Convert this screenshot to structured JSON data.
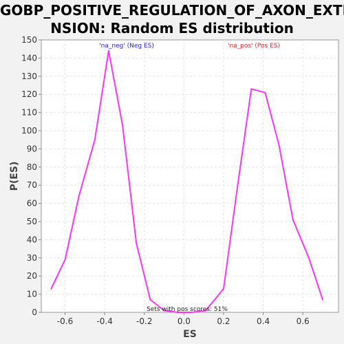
{
  "chart_data": {
    "type": "line",
    "title_line1": "GOBP_POSITIVE_REGULATION_OF_AXON_EXTE",
    "title_line2": "NSION: Random ES distribution",
    "xlabel": "ES",
    "ylabel": "P(ES)",
    "xlim": [
      -0.72,
      0.78
    ],
    "ylim": [
      0,
      150
    ],
    "xticks": [
      "-0.6",
      "-0.4",
      "-0.2",
      "0.0",
      "0.2",
      "0.4",
      "0.6"
    ],
    "xtick_values": [
      -0.6,
      -0.4,
      -0.2,
      0.0,
      0.2,
      0.4,
      0.6
    ],
    "yticks": [
      0,
      10,
      20,
      30,
      40,
      50,
      60,
      70,
      80,
      90,
      100,
      110,
      120,
      130,
      140,
      150
    ],
    "grid": true,
    "line_color": "#ff33ff",
    "series": [
      {
        "x": [
          -0.67,
          -0.6,
          -0.53,
          -0.45,
          -0.38,
          -0.31,
          -0.24,
          -0.17,
          -0.1,
          -0.03,
          0.04,
          0.11,
          0.2,
          0.27,
          0.34,
          0.41,
          0.48,
          0.55,
          0.63,
          0.7
        ],
        "y": [
          13,
          29,
          64,
          95,
          144,
          103,
          38,
          7,
          1,
          0,
          0,
          1,
          13,
          69,
          123,
          121,
          92,
          51,
          30,
          7
        ]
      }
    ],
    "annotations": {
      "neg_label": "'na_neg' (Neg ES)",
      "neg_color": "#2222ee",
      "pos_label": "'na_pos' (Pos ES)",
      "pos_color": "#ee2222",
      "pos_scores_text": "Sets with pos scores: 51%"
    }
  }
}
